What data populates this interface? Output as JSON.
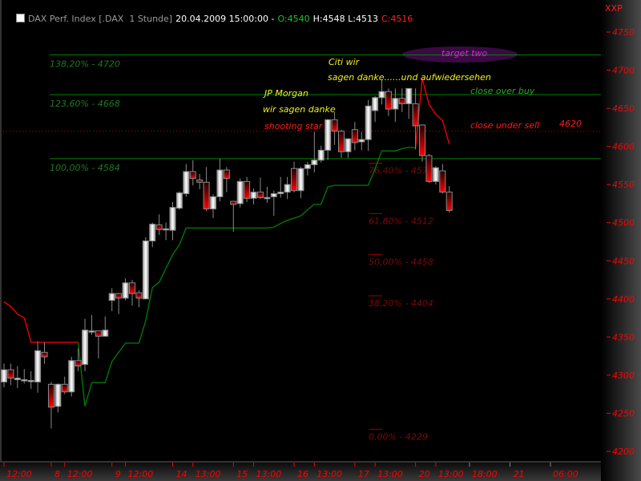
{
  "header": {
    "title": "DAX Perf. Index [.DAX  1 Stunde]",
    "datetime": "20.04.2009 15:00:00 -",
    "open": "O:4540",
    "high_low": "H:4548 L:4513",
    "close": "C:4516",
    "corner_label": "XXP"
  },
  "colors": {
    "up_candle": "#ffffff",
    "down_candle": "#ff0000",
    "long_stop": "#008000",
    "short_stop": "#ff0000",
    "fib_lines": "#008000",
    "fib_retracement": "#7a0a0a",
    "axis_text": "#ff0000"
  },
  "annotations": {
    "jp_morgan": "JP Morgan",
    "wir_sagen_danke": "wir sagen danke",
    "shooting_star": "shooting star",
    "citi_wir": "Citi wir",
    "sagen_danke": "sagen danke......und aufwiedersehen",
    "close_over_buy": "close over buy",
    "close_under_sell": "close under sell",
    "level_4620": "4620",
    "target_two": "target two"
  },
  "chart_data": {
    "type": "candlestick",
    "title": "DAX Perf. Index [.DAX  1 Stunde]",
    "ylim": [
      4187,
      4792
    ],
    "yticks": [
      4200,
      4250,
      4300,
      4350,
      4400,
      4450,
      4500,
      4550,
      4600,
      4650,
      4700,
      4750
    ],
    "xlim_bars": [
      0,
      88
    ],
    "xticks": [
      {
        "label": "12:00",
        "bar": 0
      },
      {
        "label": "8",
        "bar": 7
      },
      {
        "label": "12:00",
        "bar": 9
      },
      {
        "label": "9",
        "bar": 16
      },
      {
        "label": "12:00",
        "bar": 18
      },
      {
        "label": "14",
        "bar": 25
      },
      {
        "label": "13:00",
        "bar": 28
      },
      {
        "label": "15",
        "bar": 34
      },
      {
        "label": "13:00",
        "bar": 37
      },
      {
        "label": "16",
        "bar": 43
      },
      {
        "label": "13:00",
        "bar": 46
      },
      {
        "label": "17",
        "bar": 52
      },
      {
        "label": "13:00",
        "bar": 55
      },
      {
        "label": "20",
        "bar": 61
      },
      {
        "label": "13:00",
        "bar": 64
      },
      {
        "label": "18:00",
        "bar": 69
      },
      {
        "label": "21",
        "bar": 75
      },
      {
        "label": "06:00",
        "bar": 81
      }
    ],
    "candles_ohlc": [
      [
        4291,
        4315,
        4284,
        4307
      ],
      [
        4307,
        4315,
        4287,
        4296
      ],
      [
        4294,
        4312,
        4283,
        4296
      ],
      [
        4294,
        4308,
        4289,
        4294
      ],
      [
        4293,
        4305,
        4282,
        4293
      ],
      [
        4291,
        4344,
        4277,
        4332
      ],
      [
        4330,
        4343,
        4315,
        4324
      ],
      [
        4288,
        4291,
        4230,
        4258
      ],
      [
        4259,
        4289,
        4251,
        4288
      ],
      [
        4288,
        4298,
        4275,
        4278
      ],
      [
        4278,
        4324,
        4272,
        4319
      ],
      [
        4319,
        4335,
        4305,
        4312
      ],
      [
        4314,
        4374,
        4305,
        4359
      ],
      [
        4358,
        4379,
        4353,
        4358
      ],
      [
        4358,
        4358,
        4322,
        4351
      ],
      [
        4351,
        4377,
        4350,
        4359
      ],
      [
        4398,
        4414,
        4384,
        4407
      ],
      [
        4407,
        4408,
        4380,
        4401
      ],
      [
        4401,
        4427,
        4398,
        4421
      ],
      [
        4421,
        4425,
        4391,
        4407
      ],
      [
        4408,
        4411,
        4389,
        4401
      ],
      [
        4400,
        4481,
        4400,
        4476
      ],
      [
        4476,
        4500,
        4468,
        4498
      ],
      [
        4497,
        4511,
        4484,
        4491
      ],
      [
        4492,
        4500,
        4477,
        4492
      ],
      [
        4490,
        4527,
        4477,
        4520
      ],
      [
        4519,
        4541,
        4517,
        4539
      ],
      [
        4538,
        4577,
        4534,
        4567
      ],
      [
        4567,
        4582,
        4549,
        4558
      ],
      [
        4556,
        4564,
        4544,
        4553
      ],
      [
        4553,
        4573,
        4515,
        4518
      ],
      [
        4518,
        4537,
        4506,
        4534
      ],
      [
        4534,
        4584,
        4528,
        4569
      ],
      [
        4569,
        4573,
        4540,
        4558
      ],
      [
        4528,
        4528,
        4488,
        4524
      ],
      [
        4525,
        4558,
        4520,
        4554
      ],
      [
        4554,
        4560,
        4527,
        4532
      ],
      [
        4532,
        4545,
        4524,
        4540
      ],
      [
        4540,
        4559,
        4531,
        4533
      ],
      [
        4533,
        4547,
        4526,
        4533
      ],
      [
        4534,
        4542,
        4509,
        4538
      ],
      [
        4538,
        4560,
        4533,
        4540
      ],
      [
        4540,
        4560,
        4531,
        4550
      ],
      [
        4571,
        4580,
        4540,
        4542
      ],
      [
        4542,
        4573,
        4532,
        4571
      ],
      [
        4571,
        4580,
        4562,
        4576
      ],
      [
        4576,
        4619,
        4566,
        4582
      ],
      [
        4582,
        4601,
        4579,
        4595
      ],
      [
        4595,
        4636,
        4582,
        4635
      ],
      [
        4635,
        4645,
        4602,
        4620
      ],
      [
        4620,
        4622,
        4585,
        4593
      ],
      [
        4593,
        4610,
        4585,
        4610
      ],
      [
        4622,
        4632,
        4595,
        4605
      ],
      [
        4606,
        4619,
        4595,
        4609
      ],
      [
        4609,
        4661,
        4594,
        4653
      ],
      [
        4647,
        4666,
        4632,
        4664
      ],
      [
        4664,
        4687,
        4655,
        4672
      ],
      [
        4672,
        4676,
        4640,
        4649
      ],
      [
        4649,
        4676,
        4632,
        4663
      ],
      [
        4663,
        4676,
        4645,
        4656
      ],
      [
        4656,
        4676,
        4636,
        4676
      ],
      [
        4656,
        4676,
        4596,
        4627
      ],
      [
        4628,
        4629,
        4580,
        4588
      ],
      [
        4588,
        4590,
        4552,
        4554
      ],
      [
        4554,
        4574,
        4550,
        4572
      ],
      [
        4568,
        4577,
        4538,
        4540
      ],
      [
        4540,
        4548,
        4513,
        4516
      ]
    ],
    "short_stop": [
      4396,
      4390,
      4380,
      4375,
      4343,
      4343,
      4343,
      4343,
      4343,
      4343,
      4343,
      4343,
      null,
      null,
      null,
      null,
      null,
      null,
      null,
      null,
      null,
      null,
      null,
      null,
      null,
      null,
      null,
      null,
      null,
      null,
      null,
      null,
      null,
      null,
      null,
      null,
      null,
      null,
      null,
      null,
      null,
      null,
      null,
      null,
      null,
      null,
      null,
      null,
      null,
      null,
      null,
      null,
      null,
      null,
      null,
      null,
      null,
      null,
      null,
      null,
      null,
      4598,
      4689,
      4655,
      4642,
      4634,
      4603
    ],
    "long_stop": [
      null,
      null,
      null,
      null,
      null,
      null,
      null,
      null,
      null,
      null,
      null,
      4343,
      4259,
      4290,
      4290,
      4290,
      4318,
      4330,
      4342,
      4342,
      4342,
      4371,
      4415,
      4422,
      4440,
      4458,
      4471,
      4493,
      4493,
      4493,
      4493,
      4493,
      4493,
      4493,
      4493,
      4493,
      4493,
      4493,
      4493,
      4493,
      4494,
      4499,
      4503,
      4506,
      4509,
      4517,
      4524,
      4524,
      4547,
      4549,
      4549,
      4549,
      4549,
      4549,
      4549,
      4571,
      4594,
      4594,
      4594,
      4597,
      4599,
      4598,
      null,
      null,
      null,
      null,
      null
    ],
    "extension_levels": [
      {
        "label": "138,20% - 4720",
        "value": 4720
      },
      {
        "label": "123,60% - 4668",
        "value": 4668
      },
      {
        "label": "100,00% - 4584",
        "value": 4584
      }
    ],
    "signal_level": {
      "value": 4620,
      "style": "dotted"
    },
    "retracement_levels": [
      {
        "label": "76,40% - 4578",
        "value": 4578
      },
      {
        "label": "61,80% - 4512",
        "value": 4512
      },
      {
        "label": "50,00% - 4458",
        "value": 4458
      },
      {
        "label": "38,20% - 4404",
        "value": 4404
      },
      {
        "label": "0,00% - 4229",
        "value": 4229
      }
    ],
    "target_two_value": 4720
  }
}
